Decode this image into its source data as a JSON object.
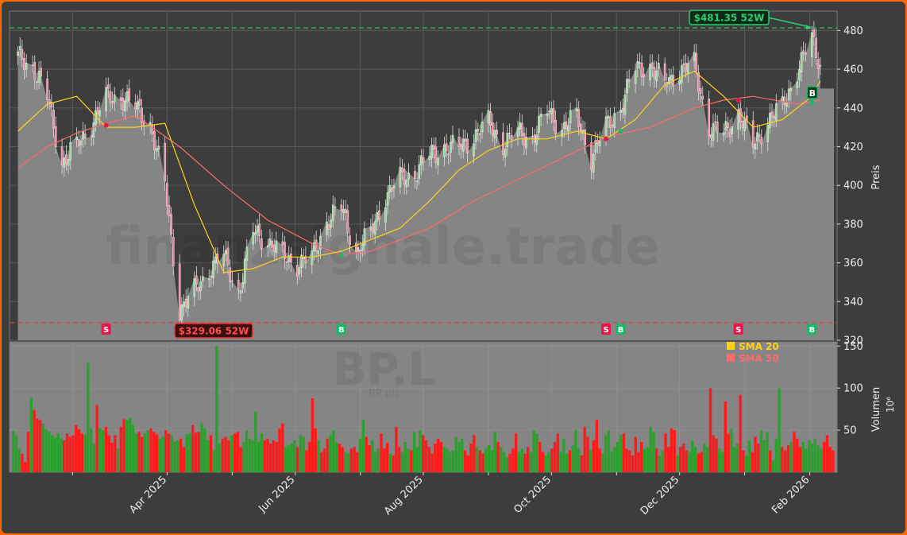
{
  "chart_data": {
    "type": "candlestick",
    "watermark": {
      "site": "finanzsignale.trade",
      "ticker": "BP.L",
      "name": "BP plc"
    },
    "price_panel": {
      "ylabel": "Preis",
      "ylim": [
        320,
        490
      ],
      "yticks": [
        320,
        340,
        360,
        380,
        400,
        420,
        440,
        460,
        480
      ],
      "high_52w": {
        "value": 481.35,
        "label": "$481.35 52W",
        "date": "2026-02-02"
      },
      "low_52w": {
        "value": 329.06,
        "label": "$329.06 52W",
        "date": "2025-04-09"
      },
      "close_points": [
        [
          "2025-01-20",
          466
        ],
        [
          "2025-01-27",
          462
        ],
        [
          "2025-02-03",
          445
        ],
        [
          "2025-02-10",
          412
        ],
        [
          "2025-02-17",
          420
        ],
        [
          "2025-02-24",
          432
        ],
        [
          "2025-03-03",
          445
        ],
        [
          "2025-03-10",
          446
        ],
        [
          "2025-03-17",
          440
        ],
        [
          "2025-03-24",
          432
        ],
        [
          "2025-03-31",
          400
        ],
        [
          "2025-04-07",
          336
        ],
        [
          "2025-04-14",
          345
        ],
        [
          "2025-04-21",
          357
        ],
        [
          "2025-04-28",
          363
        ],
        [
          "2025-05-05",
          345
        ],
        [
          "2025-05-12",
          376
        ],
        [
          "2025-05-19",
          372
        ],
        [
          "2025-05-26",
          363
        ],
        [
          "2025-06-02",
          360
        ],
        [
          "2025-06-09",
          362
        ],
        [
          "2025-06-16",
          382
        ],
        [
          "2025-06-23",
          388
        ],
        [
          "2025-06-30",
          366
        ],
        [
          "2025-07-07",
          375
        ],
        [
          "2025-07-14",
          395
        ],
        [
          "2025-07-21",
          403
        ],
        [
          "2025-07-28",
          407
        ],
        [
          "2025-08-04",
          415
        ],
        [
          "2025-08-11",
          420
        ],
        [
          "2025-08-18",
          419
        ],
        [
          "2025-08-25",
          426
        ],
        [
          "2025-09-01",
          432
        ],
        [
          "2025-09-08",
          422
        ],
        [
          "2025-09-15",
          427
        ],
        [
          "2025-09-22",
          425
        ],
        [
          "2025-09-29",
          438
        ],
        [
          "2025-10-06",
          430
        ],
        [
          "2025-10-13",
          435
        ],
        [
          "2025-10-20",
          415
        ],
        [
          "2025-10-27",
          430
        ],
        [
          "2025-11-03",
          441
        ],
        [
          "2025-11-10",
          460
        ],
        [
          "2025-11-17",
          462
        ],
        [
          "2025-11-24",
          452
        ],
        [
          "2025-12-01",
          460
        ],
        [
          "2025-12-08",
          462
        ],
        [
          "2025-12-15",
          430
        ],
        [
          "2025-12-22",
          426
        ],
        [
          "2025-12-29",
          438
        ],
        [
          "2026-01-05",
          420
        ],
        [
          "2026-01-12",
          434
        ],
        [
          "2026-01-19",
          440
        ],
        [
          "2026-01-26",
          460
        ],
        [
          "2026-02-02",
          475
        ],
        [
          "2026-02-06",
          462
        ]
      ],
      "sma20_points": [
        [
          "2025-01-20",
          428
        ],
        [
          "2025-02-03",
          442
        ],
        [
          "2025-02-17",
          446
        ],
        [
          "2025-03-03",
          430
        ],
        [
          "2025-03-17",
          430
        ],
        [
          "2025-03-31",
          432
        ],
        [
          "2025-04-14",
          390
        ],
        [
          "2025-04-28",
          355
        ],
        [
          "2025-05-12",
          357
        ],
        [
          "2025-05-26",
          363
        ],
        [
          "2025-06-09",
          363
        ],
        [
          "2025-06-23",
          366
        ],
        [
          "2025-07-07",
          372
        ],
        [
          "2025-07-21",
          378
        ],
        [
          "2025-08-04",
          392
        ],
        [
          "2025-08-18",
          408
        ],
        [
          "2025-09-01",
          418
        ],
        [
          "2025-09-15",
          424
        ],
        [
          "2025-09-29",
          424
        ],
        [
          "2025-10-13",
          428
        ],
        [
          "2025-10-27",
          424
        ],
        [
          "2025-11-10",
          434
        ],
        [
          "2025-11-24",
          452
        ],
        [
          "2025-12-08",
          459
        ],
        [
          "2025-12-22",
          446
        ],
        [
          "2026-01-05",
          430
        ],
        [
          "2026-01-19",
          434
        ],
        [
          "2026-02-02",
          446
        ],
        [
          "2026-02-06",
          454
        ]
      ],
      "sma50_points": [
        [
          "2025-01-20",
          409
        ],
        [
          "2025-02-03",
          420
        ],
        [
          "2025-02-17",
          427
        ],
        [
          "2025-03-03",
          432
        ],
        [
          "2025-03-17",
          436
        ],
        [
          "2025-04-07",
          420
        ],
        [
          "2025-04-28",
          400
        ],
        [
          "2025-05-19",
          382
        ],
        [
          "2025-06-09",
          370
        ],
        [
          "2025-06-23",
          364
        ],
        [
          "2025-07-07",
          366
        ],
        [
          "2025-07-21",
          372
        ],
        [
          "2025-08-04",
          378
        ],
        [
          "2025-08-25",
          392
        ],
        [
          "2025-09-15",
          403
        ],
        [
          "2025-10-06",
          414
        ],
        [
          "2025-10-27",
          425
        ],
        [
          "2025-11-17",
          430
        ],
        [
          "2025-12-08",
          440
        ],
        [
          "2025-12-22",
          444
        ],
        [
          "2026-01-05",
          446
        ],
        [
          "2026-01-26",
          442
        ],
        [
          "2026-02-06",
          444
        ]
      ],
      "signals": [
        {
          "type": "S",
          "date": "2025-03-03"
        },
        {
          "type": "B",
          "date": "2025-06-23"
        },
        {
          "type": "S",
          "date": "2025-10-27"
        },
        {
          "type": "B",
          "date": "2025-11-03"
        },
        {
          "type": "S",
          "date": "2025-12-29"
        },
        {
          "type": "B",
          "date": "2026-02-02"
        }
      ]
    },
    "volume_panel": {
      "ylabel": "Volumen",
      "unit": "10⁶",
      "yticks": [
        50,
        100,
        150
      ],
      "ylim": [
        0,
        155
      ],
      "values": [
        49,
        44,
        28,
        22,
        12,
        48,
        88,
        74,
        64,
        62,
        58,
        51,
        48,
        44,
        41,
        46,
        40,
        38,
        46,
        42,
        44,
        56,
        51,
        46,
        44,
        130,
        52,
        34,
        80,
        52,
        50,
        54,
        44,
        35,
        44,
        28,
        54,
        63,
        62,
        65,
        56,
        46,
        48,
        42,
        46,
        50,
        52,
        48,
        45,
        40,
        42,
        50,
        46,
        44,
        36,
        38,
        40,
        30,
        45,
        46,
        56,
        47,
        48,
        58,
        52,
        38,
        44,
        26,
        150,
        34,
        40,
        42,
        38,
        44,
        46,
        48,
        30,
        36,
        50,
        40,
        38,
        72,
        36,
        46,
        38,
        40,
        34,
        38,
        36,
        52,
        58,
        30,
        32,
        34,
        38,
        30,
        44,
        42,
        26,
        36,
        88,
        52,
        38,
        24,
        28,
        40,
        44,
        50,
        36,
        34,
        30,
        24,
        22,
        28,
        30,
        24,
        40,
        62,
        42,
        32,
        38,
        24,
        28,
        46,
        28,
        35,
        22,
        20,
        54,
        30,
        24,
        36,
        28,
        26,
        48,
        30,
        50,
        44,
        38,
        30,
        22,
        34,
        40,
        36,
        30,
        28,
        24,
        26,
        42,
        36,
        40,
        26,
        20,
        34,
        44,
        30,
        26,
        22,
        28,
        32,
        26,
        48,
        36,
        30,
        24,
        18,
        22,
        28,
        46,
        24,
        28,
        22,
        30,
        24,
        50,
        46,
        36,
        24,
        20,
        24,
        28,
        36,
        46,
        24,
        40,
        22,
        26,
        32,
        50,
        28,
        20,
        54,
        42,
        26,
        38,
        62,
        28,
        22,
        44,
        50,
        24,
        30,
        36,
        44,
        46,
        28,
        26,
        20,
        42,
        24,
        36,
        28,
        30,
        54,
        48,
        28,
        20,
        26,
        46,
        30,
        52,
        50,
        20,
        30,
        34,
        26,
        24,
        38,
        30,
        22,
        24,
        34,
        30,
        100,
        44,
        40,
        28,
        24,
        84,
        46,
        52,
        30,
        34,
        92,
        26,
        20,
        38,
        24,
        42,
        34,
        50,
        38,
        48,
        26,
        14,
        40,
        100,
        30,
        26,
        32,
        36,
        48,
        40,
        30,
        36,
        28,
        38,
        34,
        40,
        32,
        28,
        36,
        44,
        30,
        26
      ],
      "colors_pattern": "up=green, down=red"
    },
    "legend": [
      {
        "name": "SMA 20",
        "color": "#ffd21a"
      },
      {
        "name": "SMA 50",
        "color": "#ff6b6b"
      }
    ],
    "x_ticks": [
      "Apr 2025",
      "Jun 2025",
      "Aug 2025",
      "Oct 2025",
      "Dec 2025",
      "Feb 2026"
    ],
    "colors": {
      "up": "#2ca02c",
      "down": "#ff1a1a",
      "area": "#858585",
      "sma20": "#ffd21a",
      "sma50": "#ff6b6b",
      "high_line": "#2ecc71",
      "low_line": "#e83a3a",
      "sell_badge": "#e8174b",
      "buy_badge": "#16b86a",
      "frame": "#ff6a00",
      "background": "#3d3d3d"
    }
  }
}
